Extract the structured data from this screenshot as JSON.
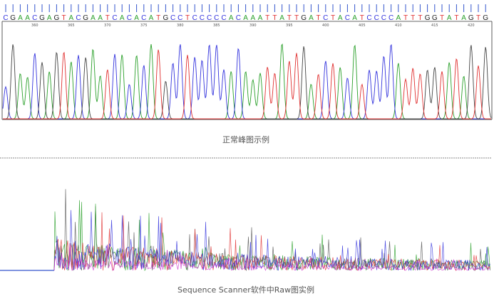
{
  "sequence": {
    "bases": [
      "C",
      "G",
      "A",
      "A",
      "C",
      "G",
      "A",
      "G",
      "T",
      "A",
      "C",
      "G",
      "A",
      "A",
      "T",
      "C",
      "A",
      "C",
      "A",
      "C",
      "A",
      "T",
      "G",
      "C",
      "C",
      "T",
      "C",
      "C",
      "C",
      "C",
      "C",
      "A",
      "C",
      "A",
      "A",
      "A",
      "T",
      "T",
      "A",
      "T",
      "T",
      "G",
      "A",
      "T",
      "C",
      "T",
      "A",
      "C",
      "A",
      "T",
      "C",
      "C",
      "C",
      "C",
      "A",
      "T",
      "T",
      "T",
      "G",
      "G",
      "T",
      "A",
      "T",
      "A",
      "G",
      "T",
      "G"
    ],
    "first_position": 356,
    "positions": [
      360,
      365,
      370,
      375,
      380,
      385,
      390,
      395,
      400,
      405,
      410,
      415,
      420
    ]
  },
  "captions": {
    "normal": "正常峰图示例",
    "raw": "Sequence Scanner软件中Raw图实例"
  }
}
